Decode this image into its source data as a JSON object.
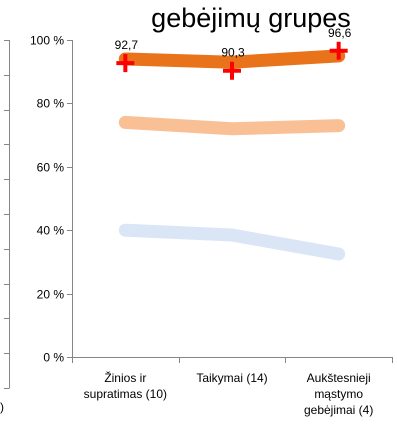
{
  "chart_data": {
    "type": "line",
    "title": "gebėjimų grupes",
    "categories": [
      [
        "Žinios ir",
        "supratimas (10)"
      ],
      [
        "Taikymai (14)"
      ],
      [
        "Aukštesnieji",
        "mąstymo",
        "gebėjimai (4)"
      ]
    ],
    "yticks": [
      "0 %",
      "20 %",
      "40 %",
      "60 %",
      "80 %",
      "100 %"
    ],
    "ylim": [
      0,
      100
    ],
    "series": [
      {
        "values": [
          94,
          93,
          95
        ],
        "color": "#e8731a",
        "width": 13
      },
      {
        "values": [
          74,
          72,
          73
        ],
        "color": "#f9c096",
        "width": 13
      },
      {
        "values": [
          40,
          38.5,
          32.5
        ],
        "color": "#dae6f6",
        "width": 13
      }
    ],
    "points": {
      "values": [
        92.7,
        90.3,
        96.6
      ],
      "labels": [
        "92,7",
        "90,3",
        "96,6"
      ],
      "color": "#ff0000",
      "marker": "plus"
    },
    "left_fragment_text": ")"
  }
}
